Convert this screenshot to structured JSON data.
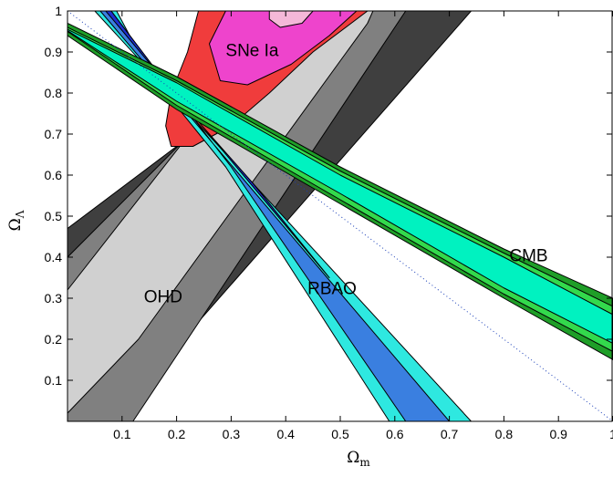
{
  "chart_data": {
    "type": "contour",
    "xlabel": "Ω",
    "xlabel_sub": "m",
    "ylabel": "Ω",
    "ylabel_sub": "Λ",
    "xlim": [
      0.0,
      1.0
    ],
    "ylim": [
      0.0,
      1.0
    ],
    "xticks": [
      0.1,
      0.2,
      0.3,
      0.4,
      0.5,
      0.6,
      0.7,
      0.8,
      0.9,
      1
    ],
    "xtick_labels": [
      "0.1",
      "0.2",
      "0.3",
      "0.4",
      "0.5",
      "0.6",
      "0.7",
      "0.8",
      "0.9",
      "1"
    ],
    "yticks": [
      0.1,
      0.2,
      0.3,
      0.4,
      0.5,
      0.6,
      0.7,
      0.8,
      0.9,
      1
    ],
    "ytick_labels": [
      "0.1",
      "0.2",
      "0.3",
      "0.4",
      "0.5",
      "0.6",
      "0.7",
      "0.8",
      "0.9",
      "1"
    ],
    "grid": false,
    "flat_line": {
      "style": "dotted",
      "color": "#1a3fb8",
      "points": [
        [
          0.0,
          1.0
        ],
        [
          1.0,
          0.0
        ]
      ]
    },
    "regions": [
      {
        "name": "OHD",
        "label": "OHD",
        "label_at": [
          0.14,
          0.29
        ],
        "layers": [
          {
            "color": "#3f3f3f",
            "polygon": [
              [
                0.0,
                0.47
              ],
              [
                0.0,
                0.0
              ],
              [
                0.08,
                0.0
              ],
              [
                0.74,
                1.0
              ],
              [
                0.53,
                1.0
              ]
            ]
          },
          {
            "color": "#808080",
            "polygon": [
              [
                0.0,
                0.4
              ],
              [
                0.0,
                0.0
              ],
              [
                0.12,
                0.0
              ],
              [
                0.62,
                1.0
              ],
              [
                0.45,
                1.0
              ]
            ]
          },
          {
            "color": "#d0d0d0",
            "polygon": [
              [
                0.0,
                0.32
              ],
              [
                0.0,
                0.02
              ],
              [
                0.13,
                0.2
              ],
              [
                0.55,
                0.97
              ],
              [
                0.56,
                1.0
              ],
              [
                0.4,
                1.0
              ]
            ]
          }
        ]
      },
      {
        "name": "SNe Ia",
        "label": "SNe Ia",
        "label_at": [
          0.29,
          0.89
        ],
        "layers": [
          {
            "color": "#f03c3c",
            "polygon": [
              [
                0.18,
                0.72
              ],
              [
                0.19,
                0.67
              ],
              [
                0.23,
                0.67
              ],
              [
                0.3,
                0.72
              ],
              [
                0.37,
                0.8
              ],
              [
                0.45,
                0.9
              ],
              [
                0.55,
                1.0
              ],
              [
                0.24,
                1.0
              ],
              [
                0.22,
                0.9
              ],
              [
                0.19,
                0.8
              ]
            ]
          },
          {
            "color": "#ee44cc",
            "polygon": [
              [
                0.26,
                0.92
              ],
              [
                0.28,
                0.83
              ],
              [
                0.33,
                0.82
              ],
              [
                0.41,
                0.87
              ],
              [
                0.48,
                0.94
              ],
              [
                0.53,
                1.0
              ],
              [
                0.29,
                1.0
              ]
            ]
          },
          {
            "color": "#f4b8d8",
            "polygon": [
              [
                0.37,
                0.98
              ],
              [
                0.39,
                0.96
              ],
              [
                0.43,
                0.97
              ],
              [
                0.45,
                1.0
              ],
              [
                0.37,
                1.0
              ]
            ]
          }
        ]
      },
      {
        "name": "RBAO",
        "label": "RBAO",
        "label_at": [
          0.44,
          0.31
        ],
        "layers": [
          {
            "color": "#2ee8e0",
            "polygon": [
              [
                0.05,
                1.0
              ],
              [
                0.74,
                0.0
              ],
              [
                0.59,
                0.0
              ],
              [
                0.29,
                0.62
              ],
              [
                0.15,
                0.85
              ],
              [
                0.09,
                1.0
              ]
            ]
          },
          {
            "color": "#3a7fe0",
            "polygon": [
              [
                0.06,
                1.0
              ],
              [
                0.7,
                0.0
              ],
              [
                0.62,
                0.0
              ],
              [
                0.3,
                0.62
              ],
              [
                0.16,
                0.86
              ],
              [
                0.08,
                1.0
              ]
            ]
          },
          {
            "color": "#1e2fd0",
            "polygon": [
              [
                0.07,
                1.0
              ],
              [
                0.48,
                0.35
              ],
              [
                0.34,
                0.58
              ],
              [
                0.2,
                0.79
              ],
              [
                0.08,
                1.0
              ]
            ]
          }
        ]
      },
      {
        "name": "CMB",
        "label": "CMB",
        "label_at": [
          0.81,
          0.39
        ],
        "layers": [
          {
            "color": "#1f9e28",
            "polygon": [
              [
                0.0,
                0.97
              ],
              [
                0.2,
                0.84
              ],
              [
                0.5,
                0.62
              ],
              [
                0.8,
                0.42
              ],
              [
                1.0,
                0.3
              ],
              [
                1.0,
                0.15
              ],
              [
                0.8,
                0.3
              ],
              [
                0.5,
                0.53
              ],
              [
                0.2,
                0.76
              ],
              [
                0.0,
                0.94
              ]
            ]
          },
          {
            "color": "#33d94c",
            "polygon": [
              [
                0.0,
                0.96
              ],
              [
                0.2,
                0.83
              ],
              [
                0.5,
                0.61
              ],
              [
                0.8,
                0.41
              ],
              [
                1.0,
                0.28
              ],
              [
                1.0,
                0.17
              ],
              [
                0.8,
                0.31
              ],
              [
                0.5,
                0.54
              ],
              [
                0.2,
                0.77
              ],
              [
                0.0,
                0.95
              ]
            ]
          },
          {
            "color": "#00f2c0",
            "polygon": [
              [
                0.0,
                0.955
              ],
              [
                0.2,
                0.825
              ],
              [
                0.5,
                0.6
              ],
              [
                0.8,
                0.4
              ],
              [
                1.0,
                0.26
              ],
              [
                1.0,
                0.19
              ],
              [
                0.8,
                0.325
              ],
              [
                0.5,
                0.555
              ],
              [
                0.2,
                0.78
              ],
              [
                0.0,
                0.952
              ]
            ]
          }
        ]
      }
    ]
  }
}
